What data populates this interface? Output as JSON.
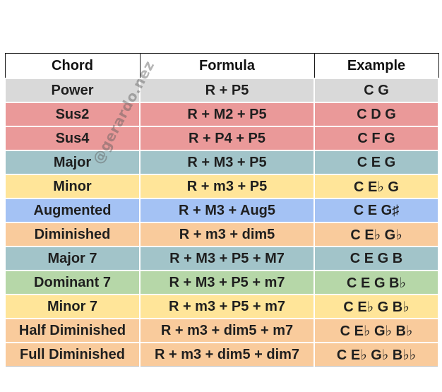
{
  "table": {
    "headers": [
      "Chord",
      "Formula",
      "Example"
    ],
    "rows": [
      {
        "chord": "Power",
        "formula": "R + P5",
        "example": "C G",
        "color": "#d9d9d9"
      },
      {
        "chord": "Sus2",
        "formula": "R + M2 + P5",
        "example": "C D G",
        "color": "#ea9999"
      },
      {
        "chord": "Sus4",
        "formula": "R + P4 + P5",
        "example": "C F G",
        "color": "#ea9999"
      },
      {
        "chord": "Major",
        "formula": "R + M3 + P5",
        "example": "C E G",
        "color": "#a2c4c9"
      },
      {
        "chord": "Minor",
        "formula": "R + m3 + P5",
        "example": "C E♭ G",
        "color": "#ffe599"
      },
      {
        "chord": "Augmented",
        "formula": "R + M3 + Aug5",
        "example": "C E G♯",
        "color": "#a4c2f4"
      },
      {
        "chord": "Diminished",
        "formula": "R + m3 + dim5",
        "example": "C E♭ G♭",
        "color": "#f9cb9c"
      },
      {
        "chord": "Major 7",
        "formula": "R + M3 + P5 + M7",
        "example": "C E G B",
        "color": "#a2c4c9"
      },
      {
        "chord": "Dominant 7",
        "formula": "R + M3 + P5 + m7",
        "example": "C E G B♭",
        "color": "#b6d7a8"
      },
      {
        "chord": "Minor 7",
        "formula": "R + m3 + P5 + m7",
        "example": "C E♭ G B♭",
        "color": "#ffe599"
      },
      {
        "chord": "Half Diminished",
        "formula": "R + m3 + dim5 + m7",
        "example": "C E♭ G♭ B♭",
        "color": "#f9cb9c"
      },
      {
        "chord": "Full Diminished",
        "formula": "R + m3 + dim5 + dim7",
        "example": "C E♭ G♭ B♭♭",
        "color": "#f9cb9c"
      }
    ]
  },
  "watermark": "@gerardo.nez"
}
